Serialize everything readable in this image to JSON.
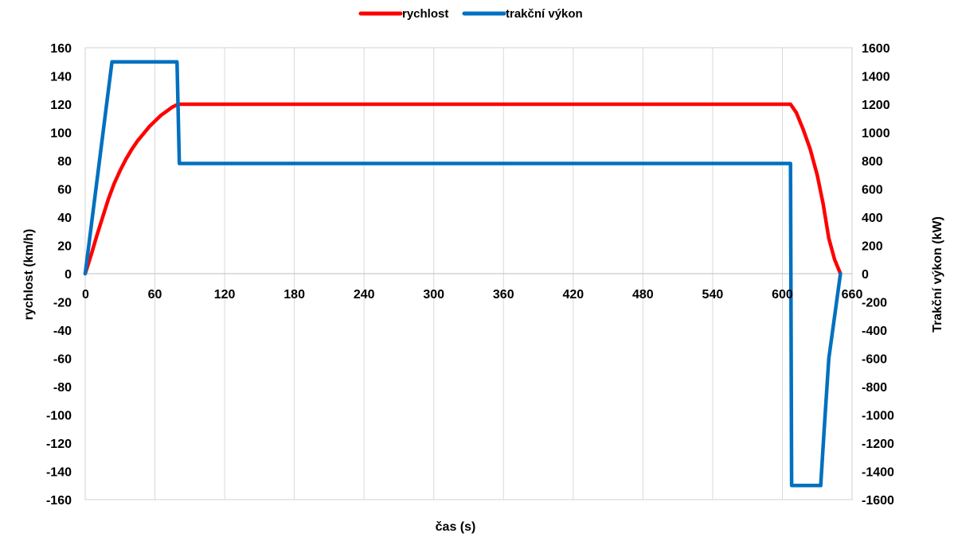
{
  "chart_data": {
    "type": "line",
    "xlabel": "čas (s)",
    "ylabel": "rychlost (km/h)",
    "y2label": "Trakční výkon (kW)",
    "xlim": [
      0,
      660
    ],
    "ylim": [
      -160,
      160
    ],
    "y2lim": [
      -1600,
      1600
    ],
    "x_ticks": [
      0,
      60,
      120,
      180,
      240,
      300,
      360,
      420,
      480,
      540,
      600,
      660
    ],
    "y_ticks": [
      160,
      140,
      120,
      100,
      80,
      60,
      40,
      20,
      0,
      -20,
      -40,
      -60,
      -80,
      -100,
      -120,
      -140,
      -160
    ],
    "y2_ticks": [
      1600,
      1400,
      1200,
      1000,
      800,
      600,
      400,
      200,
      0,
      -200,
      -400,
      -600,
      -800,
      -1000,
      -1200,
      -1400,
      -1600
    ],
    "grid": "vertical",
    "legend_position": "top",
    "series": [
      {
        "name": "rychlost",
        "axis": "left",
        "color": "#ff0000",
        "points": [
          [
            0,
            0
          ],
          [
            5,
            13
          ],
          [
            10,
            27
          ],
          [
            15,
            40
          ],
          [
            20,
            53
          ],
          [
            25,
            64
          ],
          [
            30,
            73
          ],
          [
            35,
            81
          ],
          [
            40,
            88
          ],
          [
            45,
            94
          ],
          [
            50,
            99
          ],
          [
            55,
            104
          ],
          [
            60,
            108
          ],
          [
            65,
            112
          ],
          [
            70,
            115
          ],
          [
            75,
            118
          ],
          [
            80,
            120
          ],
          [
            200,
            120
          ],
          [
            400,
            120
          ],
          [
            607,
            120
          ],
          [
            612,
            114
          ],
          [
            618,
            102
          ],
          [
            624,
            88
          ],
          [
            630,
            70
          ],
          [
            635,
            50
          ],
          [
            640,
            25
          ],
          [
            645,
            10
          ],
          [
            650,
            0
          ]
        ]
      },
      {
        "name": "trakční výkon",
        "axis": "right",
        "color": "#0070c0",
        "points": [
          [
            0,
            0
          ],
          [
            23,
            1500
          ],
          [
            79,
            1500
          ],
          [
            81,
            780
          ],
          [
            200,
            780
          ],
          [
            400,
            780
          ],
          [
            607,
            780
          ],
          [
            608,
            -1500
          ],
          [
            633,
            -1500
          ],
          [
            636,
            -1100
          ],
          [
            640,
            -600
          ],
          [
            645,
            -300
          ],
          [
            650,
            0
          ]
        ]
      }
    ]
  }
}
